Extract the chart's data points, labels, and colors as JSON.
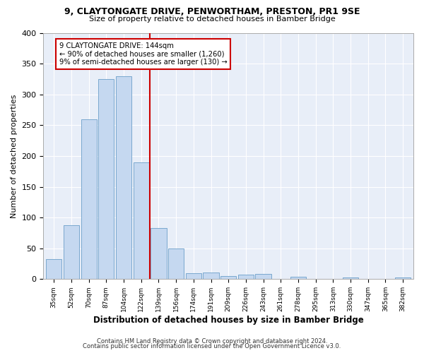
{
  "title1": "9, CLAYTONGATE DRIVE, PENWORTHAM, PRESTON, PR1 9SE",
  "title2": "Size of property relative to detached houses in Bamber Bridge",
  "xlabel": "Distribution of detached houses by size in Bamber Bridge",
  "ylabel": "Number of detached properties",
  "categories": [
    "35sqm",
    "52sqm",
    "70sqm",
    "87sqm",
    "104sqm",
    "122sqm",
    "139sqm",
    "156sqm",
    "174sqm",
    "191sqm",
    "209sqm",
    "226sqm",
    "243sqm",
    "261sqm",
    "278sqm",
    "295sqm",
    "313sqm",
    "330sqm",
    "347sqm",
    "365sqm",
    "382sqm"
  ],
  "values": [
    33,
    88,
    260,
    325,
    330,
    190,
    83,
    50,
    10,
    11,
    5,
    7,
    8,
    0,
    4,
    0,
    0,
    3,
    0,
    0,
    3
  ],
  "bar_color": "#c5d8f0",
  "bar_edge_color": "#6b9ec8",
  "background_color": "#e8eef8",
  "grid_color": "#ffffff",
  "vline_x": 5.5,
  "annotation_title": "9 CLAYTONGATE DRIVE: 144sqm",
  "annotation_line1": "← 90% of detached houses are smaller (1,260)",
  "annotation_line2": "9% of semi-detached houses are larger (130) →",
  "footer1": "Contains HM Land Registry data © Crown copyright and database right 2024.",
  "footer2": "Contains public sector information licensed under the Open Government Licence v3.0.",
  "ylim": [
    0,
    400
  ],
  "yticks": [
    0,
    50,
    100,
    150,
    200,
    250,
    300,
    350,
    400
  ]
}
